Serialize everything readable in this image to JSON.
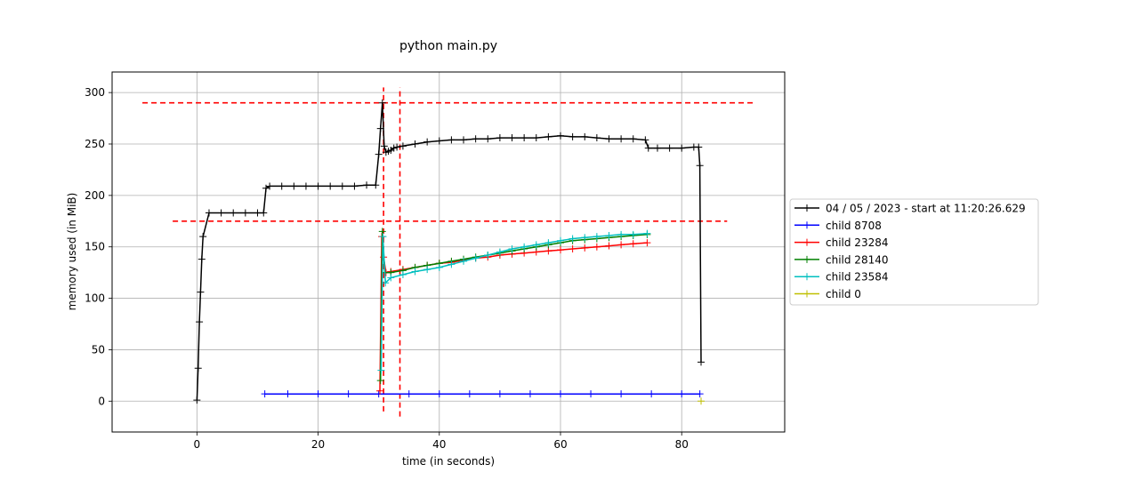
{
  "chart_data": {
    "type": "line",
    "title": "python main.py",
    "xlabel": "time (in seconds)",
    "ylabel": "memory used (in MiB)",
    "xlim": [
      -14,
      97
    ],
    "ylim": [
      -30,
      320
    ],
    "xticks": [
      0,
      20,
      40,
      60,
      80
    ],
    "yticks": [
      0,
      50,
      100,
      150,
      200,
      250,
      300
    ],
    "grid": true,
    "legend_position": "outside-right",
    "series": [
      {
        "name": "04 / 05 / 2023 - start at 11:20:26.629",
        "color": "#000000",
        "x": [
          0.0,
          0.2,
          0.4,
          0.6,
          0.8,
          1.0,
          2,
          4,
          6,
          8,
          10,
          11.0,
          11.4,
          12,
          14,
          16,
          18,
          20,
          22,
          24,
          26,
          28,
          29.5,
          30.0,
          30.3,
          30.6,
          30.9,
          31.2,
          31.6,
          32.0,
          32.5,
          33.0,
          34,
          36,
          38,
          40,
          42,
          44,
          46,
          48,
          50,
          52,
          54,
          56,
          58,
          60,
          62,
          64,
          66,
          68,
          70,
          72,
          74,
          74.5,
          76,
          78,
          80,
          82,
          82.8,
          83.0,
          83.2
        ],
        "y": [
          1,
          32,
          77,
          106,
          138,
          160,
          183,
          183,
          183,
          183,
          183,
          183,
          207,
          209,
          209,
          209,
          209,
          209,
          209,
          209,
          209,
          210,
          210,
          240,
          265,
          290,
          248,
          242,
          243,
          244,
          246,
          247,
          248,
          250,
          252,
          253,
          254,
          254,
          255,
          255,
          256,
          256,
          256,
          256,
          257,
          258,
          257,
          257,
          256,
          255,
          255,
          255,
          254,
          246,
          246,
          246,
          246,
          247,
          247,
          229,
          38
        ]
      },
      {
        "name": "child 8708",
        "color": "#0000ff",
        "x": [
          11.2,
          15,
          20,
          25,
          30,
          35,
          40,
          45,
          50,
          55,
          60,
          65,
          70,
          75,
          80,
          83.0
        ],
        "y": [
          7,
          7,
          7,
          7,
          7,
          7,
          7,
          7,
          7,
          7,
          7,
          7,
          7,
          7,
          7,
          7
        ]
      },
      {
        "name": "child 23284",
        "color": "#ff0000",
        "x": [
          30.2,
          30.5,
          30.8,
          31.2,
          32,
          34,
          36,
          38,
          40,
          42,
          44,
          46,
          48,
          50,
          52,
          54,
          56,
          58,
          60,
          62,
          64,
          66,
          68,
          70,
          72,
          74.3
        ],
        "y": [
          10,
          160,
          140,
          125,
          126,
          128,
          130,
          132,
          134,
          135,
          137,
          139,
          140,
          142,
          143,
          144,
          145,
          146,
          147,
          148,
          149,
          150,
          151,
          152,
          153,
          154
        ]
      },
      {
        "name": "child 28140",
        "color": "#008000",
        "x": [
          30.3,
          30.6,
          31.0,
          32,
          34,
          36,
          38,
          40,
          42,
          44,
          46,
          48,
          50,
          52,
          54,
          56,
          58,
          60,
          62,
          64,
          66,
          68,
          70,
          72,
          74.3
        ],
        "y": [
          20,
          165,
          125,
          125,
          127,
          130,
          132,
          134,
          136,
          138,
          140,
          142,
          144,
          146,
          148,
          150,
          152,
          154,
          156,
          157,
          158,
          159,
          160,
          161,
          162
        ]
      },
      {
        "name": "child 23584",
        "color": "#00bfbf",
        "x": [
          30.4,
          30.7,
          31.1,
          32,
          34,
          36,
          38,
          40,
          42,
          44,
          46,
          48,
          50,
          52,
          54,
          56,
          58,
          60,
          62,
          64,
          66,
          68,
          70,
          72,
          74.3
        ],
        "y": [
          30,
          160,
          115,
          120,
          123,
          126,
          128,
          130,
          133,
          136,
          139,
          142,
          145,
          148,
          150,
          152,
          154,
          156,
          158,
          159,
          160,
          161,
          162,
          162,
          163
        ]
      },
      {
        "name": "child 0",
        "color": "#bfbf00",
        "x": [
          83.2
        ],
        "y": [
          0
        ]
      }
    ],
    "dashed_lines": [
      {
        "orientation": "horizontal",
        "y": 290,
        "x_from": -9,
        "x_to": 92,
        "color": "#ff0000"
      },
      {
        "orientation": "horizontal",
        "y": 175,
        "x_from": -4,
        "x_to": 87.5,
        "color": "#ff0000"
      },
      {
        "orientation": "vertical",
        "x": 30.8,
        "y_from": -10,
        "y_to": 305,
        "color": "#ff0000"
      },
      {
        "orientation": "vertical",
        "x": 33.5,
        "y_from": -15,
        "y_to": 305,
        "color": "#ff0000"
      }
    ]
  }
}
